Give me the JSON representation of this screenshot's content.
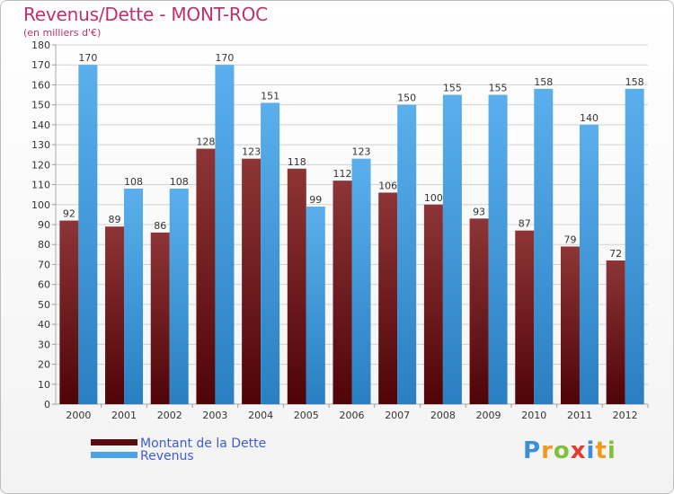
{
  "header": {
    "title": "Revenus/Dette - MONT-ROC",
    "subtitle": "(en milliers d'€)"
  },
  "legend": {
    "items": [
      {
        "label": "Montant de la Dette",
        "color": "#7a1f21"
      },
      {
        "label": "Revenus",
        "color": "#4aa3e8"
      }
    ]
  },
  "logo": {
    "text": "Proxiti"
  },
  "chart_data": {
    "type": "bar",
    "title": "Revenus/Dette - MONT-ROC",
    "subtitle": "(en milliers d'€)",
    "categories": [
      "2000",
      "2001",
      "2002",
      "2003",
      "2004",
      "2005",
      "2006",
      "2007",
      "2008",
      "2009",
      "2010",
      "2011",
      "2012"
    ],
    "series": [
      {
        "name": "Montant de la Dette",
        "values": [
          92,
          89,
          86,
          128,
          123,
          118,
          112,
          106,
          100,
          93,
          87,
          79,
          72
        ],
        "color": "#7a1f21"
      },
      {
        "name": "Revenus",
        "values": [
          170,
          108,
          108,
          170,
          151,
          99,
          123,
          150,
          155,
          155,
          158,
          140,
          158
        ],
        "color": "#4aa3e8"
      }
    ],
    "ylim": [
      0,
      180
    ],
    "ytick_step": 10,
    "grid": true,
    "legend_position": "bottom-left"
  }
}
